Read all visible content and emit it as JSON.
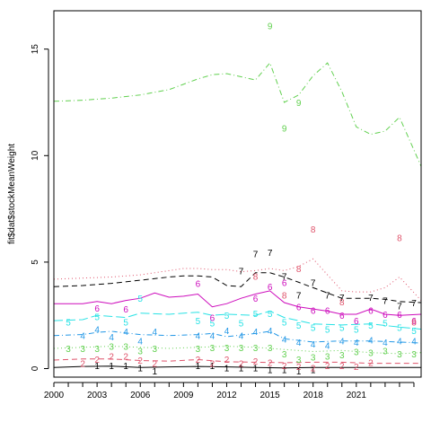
{
  "chart_data": {
    "type": "line",
    "title": "",
    "xlabel": "",
    "ylabel": "fit$dat$stockMeanWeight",
    "xlim": [
      2000,
      2025.5
    ],
    "ylim": [
      -0.4,
      16.8
    ],
    "x_ticks": [
      2000,
      2003,
      2006,
      2009,
      2012,
      2015,
      2018,
      2021
    ],
    "x_minor_ticks": [
      2001,
      2002,
      2004,
      2005,
      2007,
      2008,
      2010,
      2011,
      2013,
      2014,
      2016,
      2017,
      2019,
      2020,
      2022,
      2023,
      2024,
      2025
    ],
    "y_ticks": [
      0,
      5,
      10,
      15
    ],
    "grid": false,
    "legend": "none",
    "series": [
      {
        "marker": "1",
        "color": "#000000",
        "dash": "",
        "x": [
          2000,
          2002,
          2004,
          2006,
          2008,
          2010,
          2012,
          2014,
          2016,
          2018,
          2020,
          2022,
          2024,
          2025.5
        ],
        "y": [
          0.05,
          0.1,
          0.12,
          0.05,
          0.08,
          0.1,
          0.08,
          0.05,
          0.03,
          0.05,
          0.05,
          0.05,
          0.05,
          0.05
        ],
        "points": [
          {
            "x": 2003,
            "y": 0.15
          },
          {
            "x": 2004,
            "y": 0.15
          },
          {
            "x": 2005,
            "y": 0.15
          },
          {
            "x": 2006,
            "y": 0.05
          },
          {
            "x": 2007,
            "y": -0.1
          },
          {
            "x": 2010,
            "y": 0.15
          },
          {
            "x": 2011,
            "y": 0.15
          },
          {
            "x": 2012,
            "y": 0.05
          },
          {
            "x": 2013,
            "y": 0.05
          },
          {
            "x": 2014,
            "y": 0.05
          },
          {
            "x": 2015,
            "y": -0.05
          },
          {
            "x": 2016,
            "y": -0.05
          },
          {
            "x": 2017,
            "y": -0.1
          },
          {
            "x": 2018,
            "y": -0.05
          }
        ]
      },
      {
        "marker": "2",
        "color": "#df536b",
        "dash": "6 4",
        "x": [
          2000,
          2002,
          2004,
          2006,
          2008,
          2010,
          2012,
          2014,
          2016,
          2018,
          2020,
          2022,
          2024,
          2025.5
        ],
        "y": [
          0.4,
          0.45,
          0.45,
          0.38,
          0.35,
          0.42,
          0.32,
          0.3,
          0.28,
          0.3,
          0.3,
          0.25,
          0.25,
          0.25
        ],
        "points": [
          {
            "x": 2002,
            "y": 0.25
          },
          {
            "x": 2003,
            "y": 0.45
          },
          {
            "x": 2004,
            "y": 0.6
          },
          {
            "x": 2005,
            "y": 0.6
          },
          {
            "x": 2006,
            "y": 0.4
          },
          {
            "x": 2007,
            "y": 0.25
          },
          {
            "x": 2010,
            "y": 0.45
          },
          {
            "x": 2011,
            "y": 0.25
          },
          {
            "x": 2012,
            "y": 0.45
          },
          {
            "x": 2013,
            "y": 0.25
          },
          {
            "x": 2014,
            "y": 0.35
          },
          {
            "x": 2015,
            "y": 0.3
          },
          {
            "x": 2016,
            "y": 0.15
          },
          {
            "x": 2017,
            "y": 0.1
          },
          {
            "x": 2018,
            "y": 0.05
          },
          {
            "x": 2019,
            "y": 0.15
          },
          {
            "x": 2020,
            "y": 0.15
          },
          {
            "x": 2021,
            "y": 0.1
          },
          {
            "x": 2022,
            "y": 0.3
          }
        ]
      },
      {
        "marker": "3",
        "color": "#61d04f",
        "dash": "1 3",
        "x": [
          2000,
          2002,
          2004,
          2006,
          2008,
          2010,
          2012,
          2014,
          2016,
          2018,
          2020,
          2022,
          2024,
          2025.5
        ],
        "y": [
          0.95,
          1.0,
          1.05,
          1.0,
          0.95,
          1.0,
          1.05,
          1.0,
          0.9,
          0.8,
          0.85,
          0.75,
          0.7,
          0.75
        ],
        "points": [
          {
            "x": 2001,
            "y": 0.95
          },
          {
            "x": 2002,
            "y": 0.95
          },
          {
            "x": 2003,
            "y": 0.95
          },
          {
            "x": 2004,
            "y": 1.05
          },
          {
            "x": 2005,
            "y": 1.05
          },
          {
            "x": 2006,
            "y": 0.85
          },
          {
            "x": 2007,
            "y": 0.95
          },
          {
            "x": 2010,
            "y": 0.95
          },
          {
            "x": 2011,
            "y": 1.0
          },
          {
            "x": 2012,
            "y": 1.0
          },
          {
            "x": 2013,
            "y": 1.0
          },
          {
            "x": 2014,
            "y": 1.0
          },
          {
            "x": 2015,
            "y": 1.0
          },
          {
            "x": 2016,
            "y": 0.7
          },
          {
            "x": 2017,
            "y": 0.45
          },
          {
            "x": 2018,
            "y": 0.55
          },
          {
            "x": 2019,
            "y": 0.6
          },
          {
            "x": 2020,
            "y": 0.65
          },
          {
            "x": 2021,
            "y": 0.8
          },
          {
            "x": 2022,
            "y": 0.75
          },
          {
            "x": 2023,
            "y": 0.85
          },
          {
            "x": 2024,
            "y": 0.7
          },
          {
            "x": 2025,
            "y": 0.7
          }
        ]
      },
      {
        "marker": "4",
        "color": "#2297e6",
        "dash": "6 3 1 3",
        "x": [
          2000,
          2002,
          2003,
          2004,
          2006,
          2008,
          2010,
          2011,
          2012,
          2014,
          2015,
          2016,
          2018,
          2020,
          2022,
          2024,
          2025.5
        ],
        "y": [
          1.55,
          1.6,
          1.7,
          1.75,
          1.6,
          1.55,
          1.6,
          1.65,
          1.5,
          1.65,
          1.75,
          1.4,
          1.25,
          1.3,
          1.3,
          1.25,
          1.2
        ],
        "points": [
          {
            "x": 2002,
            "y": 1.55
          },
          {
            "x": 2003,
            "y": 1.85
          },
          {
            "x": 2004,
            "y": 1.5
          },
          {
            "x": 2005,
            "y": 1.75
          },
          {
            "x": 2006,
            "y": 1.3
          },
          {
            "x": 2007,
            "y": 1.75
          },
          {
            "x": 2010,
            "y": 1.55
          },
          {
            "x": 2011,
            "y": 1.55
          },
          {
            "x": 2012,
            "y": 1.8
          },
          {
            "x": 2013,
            "y": 1.55
          },
          {
            "x": 2014,
            "y": 1.75
          },
          {
            "x": 2015,
            "y": 1.8
          },
          {
            "x": 2016,
            "y": 1.4
          },
          {
            "x": 2017,
            "y": 1.25
          },
          {
            "x": 2018,
            "y": 1.15
          },
          {
            "x": 2019,
            "y": 1.1
          },
          {
            "x": 2020,
            "y": 1.3
          },
          {
            "x": 2021,
            "y": 1.25
          },
          {
            "x": 2022,
            "y": 1.35
          },
          {
            "x": 2023,
            "y": 1.25
          },
          {
            "x": 2024,
            "y": 1.3
          },
          {
            "x": 2025,
            "y": 1.3
          }
        ]
      },
      {
        "marker": "5",
        "color": "#28e2e5",
        "dash": "10 4",
        "x": [
          2000,
          2002,
          2003,
          2005,
          2006,
          2008,
          2010,
          2011,
          2012,
          2014,
          2015,
          2016,
          2018,
          2020,
          2022,
          2024,
          2025.5
        ],
        "y": [
          2.25,
          2.3,
          2.5,
          2.4,
          2.6,
          2.55,
          2.65,
          2.5,
          2.55,
          2.5,
          2.7,
          2.4,
          2.1,
          2.05,
          2.1,
          1.95,
          1.85
        ],
        "points": [
          {
            "x": 2001,
            "y": 2.2
          },
          {
            "x": 2003,
            "y": 2.45
          },
          {
            "x": 2005,
            "y": 2.2
          },
          {
            "x": 2006,
            "y": 3.3
          },
          {
            "x": 2010,
            "y": 2.25
          },
          {
            "x": 2011,
            "y": 2.15
          },
          {
            "x": 2012,
            "y": 2.5
          },
          {
            "x": 2013,
            "y": 2.15
          },
          {
            "x": 2014,
            "y": 2.6
          },
          {
            "x": 2015,
            "y": 2.6
          },
          {
            "x": 2016,
            "y": 2.2
          },
          {
            "x": 2017,
            "y": 2.05
          },
          {
            "x": 2018,
            "y": 1.95
          },
          {
            "x": 2019,
            "y": 1.85
          },
          {
            "x": 2020,
            "y": 1.95
          },
          {
            "x": 2021,
            "y": 1.85
          },
          {
            "x": 2022,
            "y": 2.05
          },
          {
            "x": 2023,
            "y": 2.15
          },
          {
            "x": 2024,
            "y": 1.95
          },
          {
            "x": 2025,
            "y": 1.8
          }
        ]
      },
      {
        "marker": "6",
        "color": "#cd0bbc",
        "dash": "",
        "x": [
          2000,
          2002,
          2003,
          2004,
          2005,
          2006,
          2007,
          2008,
          2009,
          2010,
          2011,
          2012,
          2013,
          2014,
          2015,
          2016,
          2017,
          2018,
          2019,
          2020,
          2021,
          2022,
          2023,
          2024,
          2025.5
        ],
        "y": [
          3.05,
          3.05,
          3.15,
          3.05,
          3.2,
          3.3,
          3.55,
          3.35,
          3.4,
          3.5,
          2.9,
          3.05,
          3.3,
          3.5,
          3.65,
          3.1,
          2.9,
          2.8,
          2.7,
          2.55,
          2.55,
          2.8,
          2.55,
          2.5,
          2.55
        ],
        "points": [
          {
            "x": 2003,
            "y": 2.85
          },
          {
            "x": 2005,
            "y": 2.8
          },
          {
            "x": 2010,
            "y": 4.0
          },
          {
            "x": 2011,
            "y": 2.4
          },
          {
            "x": 2014,
            "y": 3.3
          },
          {
            "x": 2015,
            "y": 3.85
          },
          {
            "x": 2016,
            "y": 4.05
          },
          {
            "x": 2017,
            "y": 2.9
          },
          {
            "x": 2018,
            "y": 2.75
          },
          {
            "x": 2019,
            "y": 2.75
          },
          {
            "x": 2020,
            "y": 2.5
          },
          {
            "x": 2021,
            "y": 2.25
          },
          {
            "x": 2022,
            "y": 2.75
          },
          {
            "x": 2023,
            "y": 2.55
          },
          {
            "x": 2024,
            "y": 2.55
          },
          {
            "x": 2025,
            "y": 2.25
          }
        ]
      },
      {
        "marker": "7",
        "color": "#f5c710",
        "dash": "",
        "x": [],
        "y": [],
        "points": []
      },
      {
        "marker": "7",
        "color": "#000000",
        "dash": "6 4",
        "x": [
          2000,
          2002,
          2004,
          2006,
          2008,
          2009,
          2010,
          2011,
          2012,
          2013,
          2014,
          2015,
          2016,
          2017,
          2018,
          2019,
          2020,
          2021,
          2022,
          2023,
          2024,
          2025.5
        ],
        "y": [
          3.85,
          3.9,
          4.0,
          4.15,
          4.3,
          4.35,
          4.35,
          4.3,
          3.9,
          3.85,
          4.5,
          4.5,
          4.3,
          4.05,
          3.8,
          3.55,
          3.3,
          3.3,
          3.3,
          3.25,
          3.15,
          3.1
        ],
        "points": [
          {
            "x": 2014,
            "y": 5.4
          },
          {
            "x": 2015,
            "y": 5.45
          },
          {
            "x": 2013,
            "y": 4.6
          },
          {
            "x": 2016,
            "y": 4.35
          },
          {
            "x": 2017,
            "y": 3.45
          },
          {
            "x": 2018,
            "y": 4.05
          },
          {
            "x": 2019,
            "y": 3.45
          },
          {
            "x": 2020,
            "y": 3.35
          },
          {
            "x": 2022,
            "y": 3.35
          },
          {
            "x": 2023,
            "y": 3.2
          },
          {
            "x": 2024,
            "y": 2.95
          },
          {
            "x": 2025,
            "y": 3.1
          }
        ]
      },
      {
        "marker": "8",
        "color": "#df536b",
        "dash": "1 3",
        "x": [
          2000,
          2002,
          2004,
          2006,
          2008,
          2009,
          2010,
          2011,
          2012,
          2013,
          2014,
          2015,
          2016,
          2017,
          2018,
          2019,
          2020,
          2021,
          2022,
          2023,
          2024,
          2025.5
        ],
        "y": [
          4.2,
          4.25,
          4.3,
          4.4,
          4.6,
          4.7,
          4.7,
          4.65,
          4.65,
          4.55,
          4.6,
          4.7,
          4.6,
          4.8,
          5.15,
          4.4,
          3.65,
          3.6,
          3.6,
          3.8,
          4.3,
          3.2
        ],
        "points": [
          {
            "x": 2014,
            "y": 4.35
          },
          {
            "x": 2016,
            "y": 3.45
          },
          {
            "x": 2017,
            "y": 4.7
          },
          {
            "x": 2018,
            "y": 6.55
          },
          {
            "x": 2020,
            "y": 3.15
          },
          {
            "x": 2024,
            "y": 6.15
          },
          {
            "x": 2025,
            "y": 2.2
          }
        ]
      },
      {
        "marker": "9",
        "color": "#61d04f",
        "dash": "6 3 1 3",
        "x": [
          2000,
          2002,
          2004,
          2006,
          2008,
          2010,
          2011,
          2012,
          2013,
          2014,
          2015,
          2016,
          2017,
          2018,
          2019,
          2020,
          2021,
          2022,
          2023,
          2024,
          2025.5
        ],
        "y": [
          12.55,
          12.6,
          12.7,
          12.85,
          13.1,
          13.6,
          13.8,
          13.85,
          13.7,
          13.55,
          14.35,
          12.5,
          12.85,
          13.75,
          14.35,
          13.0,
          11.35,
          11.0,
          11.15,
          11.8,
          9.5
        ],
        "points": [
          {
            "x": 2015,
            "y": 16.1
          },
          {
            "x": 2016,
            "y": 11.3
          },
          {
            "x": 2017,
            "y": 12.5
          }
        ]
      }
    ]
  }
}
